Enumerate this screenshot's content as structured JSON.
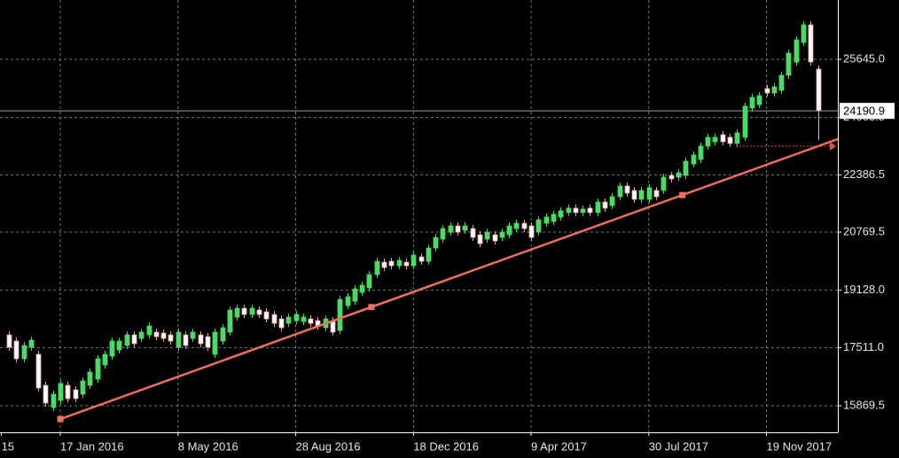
{
  "chart_data": {
    "type": "candlestick",
    "open": [
      17870,
      17695,
      17195,
      17520,
      17320,
      16445,
      15820,
      16020,
      16445,
      16320,
      16195,
      16445,
      16620,
      17020,
      17270,
      17445,
      17570,
      17870,
      17770,
      17870,
      17945,
      17920,
      17870,
      17520,
      17870,
      17770,
      17870,
      17820,
      17320,
      17695,
      17945,
      18370,
      18620,
      18445,
      18570,
      18520,
      18445,
      18320,
      18195,
      18270,
      18245,
      18320,
      18270,
      18070,
      18270,
      17995,
      18695,
      18820,
      19070,
      19195,
      19570,
      19920,
      19945,
      19820,
      19920,
      19820,
      20070,
      19945,
      20320,
      20570,
      20770,
      20945,
      20820,
      20870,
      20695,
      20570,
      20695,
      20620,
      20695,
      20870,
      21020,
      20945,
      20770,
      21020,
      21070,
      21195,
      21320,
      21445,
      21320,
      21445,
      21320,
      21620,
      21520,
      21770,
      22070,
      21945,
      21695,
      21695,
      21945,
      21945,
      22370,
      22320,
      22370,
      22695,
      22820,
      23195,
      23320,
      23520,
      23445,
      23270,
      23445,
      24270,
      24370,
      24820,
      24695,
      24770,
      25195,
      25570,
      26120,
      26620,
      25370
    ],
    "high": [
      17970,
      17795,
      17670,
      17820,
      17420,
      16545,
      16295,
      16595,
      16545,
      16420,
      16670,
      16920,
      17295,
      17420,
      17795,
      17795,
      17970,
      17970,
      18045,
      18220,
      18045,
      18020,
      17970,
      18045,
      17970,
      18045,
      17970,
      17920,
      18045,
      18170,
      18670,
      18720,
      18720,
      18720,
      18670,
      18620,
      18545,
      18420,
      18470,
      18545,
      18470,
      18420,
      18370,
      18420,
      18370,
      18970,
      19045,
      19270,
      19370,
      19670,
      20045,
      20020,
      20045,
      20070,
      20020,
      20220,
      20170,
      20420,
      20720,
      20970,
      21045,
      21045,
      21045,
      20970,
      20795,
      20870,
      20795,
      20870,
      21045,
      21120,
      21120,
      21045,
      21220,
      21295,
      21370,
      21470,
      21545,
      21545,
      21520,
      21545,
      21720,
      21720,
      21870,
      22170,
      22170,
      22045,
      22045,
      22120,
      22045,
      22420,
      22470,
      22545,
      22870,
      23045,
      23295,
      23545,
      23545,
      23620,
      23545,
      23670,
      24420,
      24670,
      24720,
      24920,
      24970,
      25295,
      25920,
      26295,
      26720,
      26720,
      25470
    ],
    "low": [
      17420,
      17095,
      17095,
      17420,
      16270,
      15845,
      15720,
      15920,
      15970,
      15970,
      16095,
      16345,
      16520,
      16920,
      17170,
      17345,
      17470,
      17520,
      17670,
      17770,
      17720,
      17670,
      17595,
      17420,
      17470,
      17670,
      17520,
      17420,
      17220,
      17595,
      17845,
      18270,
      18345,
      18345,
      18345,
      18220,
      18095,
      17970,
      18095,
      18170,
      18145,
      18095,
      18020,
      17970,
      17845,
      17895,
      18595,
      18720,
      18970,
      19095,
      19470,
      19670,
      19720,
      19720,
      19720,
      19720,
      19845,
      19845,
      20220,
      20470,
      20670,
      20670,
      20720,
      20520,
      20345,
      20470,
      20420,
      20520,
      20595,
      20770,
      20770,
      20520,
      20670,
      20920,
      20970,
      21095,
      21220,
      21220,
      21220,
      21220,
      21220,
      21345,
      21420,
      21670,
      21770,
      21595,
      21595,
      21595,
      21670,
      21845,
      22170,
      22220,
      22270,
      22595,
      22720,
      23095,
      23220,
      23220,
      23170,
      23170,
      23345,
      24170,
      24270,
      24595,
      24595,
      24670,
      25095,
      25470,
      26020,
      25470,
      23370
    ],
    "close": [
      17520,
      17195,
      17570,
      17720,
      16370,
      15945,
      16195,
      16495,
      16070,
      16070,
      16570,
      16820,
      17195,
      17320,
      17695,
      17695,
      17870,
      17620,
      17945,
      18120,
      17820,
      17770,
      17695,
      17945,
      17570,
      17945,
      17620,
      17520,
      17945,
      18070,
      18570,
      18620,
      18445,
      18620,
      18445,
      18320,
      18195,
      18070,
      18370,
      18445,
      18370,
      18195,
      18120,
      18320,
      17945,
      18870,
      18945,
      19170,
      19270,
      19570,
      19945,
      19770,
      19820,
      19970,
      19820,
      20120,
      19945,
      20320,
      20620,
      20870,
      20945,
      20770,
      20945,
      20620,
      20445,
      20770,
      20520,
      20770,
      20945,
      21020,
      20870,
      20620,
      21120,
      21195,
      21270,
      21370,
      21445,
      21320,
      21420,
      21320,
      21620,
      21445,
      21770,
      22070,
      21870,
      21695,
      21945,
      22020,
      21770,
      22320,
      22270,
      22445,
      22770,
      22945,
      23195,
      23445,
      23445,
      23320,
      23270,
      23570,
      24320,
      24570,
      24620,
      24695,
      24870,
      25195,
      25820,
      26195,
      26620,
      25570,
      24190.9
    ],
    "up_color": "#4cd964",
    "down_color": "#ffffff",
    "down_edge": "#f0a0a0",
    "xlim": [
      -1.2,
      112.7
    ],
    "xticks": [
      {
        "value": -1,
        "label": "15"
      },
      {
        "value": 7,
        "label": "17 Jan 2016"
      },
      {
        "value": 23,
        "label": "8 May 2016"
      },
      {
        "value": 39,
        "label": "28 Aug 2016"
      },
      {
        "value": 55,
        "label": "18 Dec 2016"
      },
      {
        "value": 71,
        "label": "9 Apr 2017"
      },
      {
        "value": 87,
        "label": "30 Jul 2017"
      },
      {
        "value": 103,
        "label": "19 Nov 2017"
      }
    ],
    "ylim": [
      15120,
      27320
    ],
    "yticks": [
      15869.5,
      {
        "value": 17511.0,
        "label": "17511.0"
      },
      {
        "value": 19128.0,
        "label": "19128.0"
      },
      20769.5,
      22386.5,
      24003.5,
      {
        "value": 25645.0,
        "label": "25645.0"
      }
    ],
    "grid": true,
    "current_price": 24190.9,
    "trendline": {
      "x": [
        7,
        112.7
      ],
      "y": [
        15494.5,
        23395
      ],
      "color": "#ef6f5e"
    }
  }
}
